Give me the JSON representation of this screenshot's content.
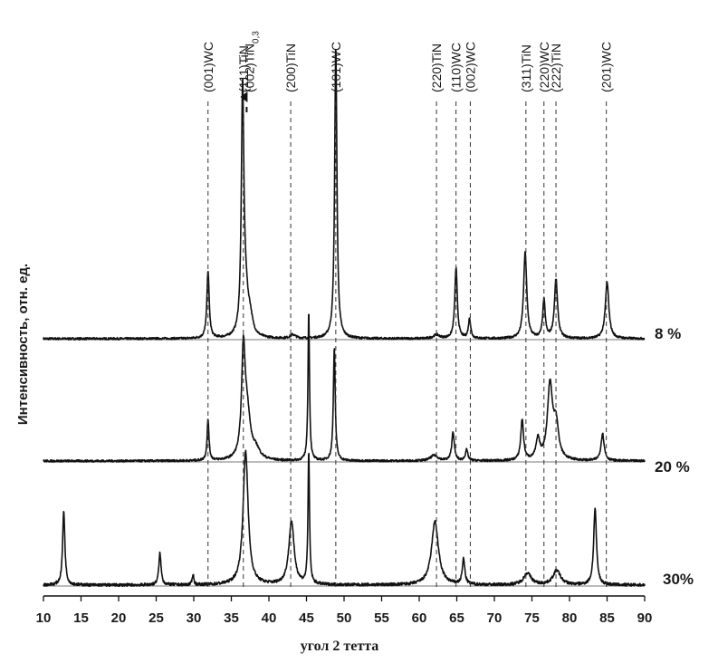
{
  "chart_data": {
    "type": "line",
    "xlabel": "угол 2 тетта",
    "ylabel": "Интенсивность, отн. ед.",
    "xlim": [
      10,
      90
    ],
    "x_ticks": [
      10,
      15,
      20,
      25,
      30,
      35,
      40,
      45,
      50,
      55,
      60,
      65,
      70,
      75,
      80,
      85,
      90
    ],
    "grid": false,
    "y_ticks": false,
    "peak_labels": [
      {
        "label": "(001)WC",
        "x": 31.9
      },
      {
        "label": "(111)TiN",
        "x": 36.6
      },
      {
        "label": "(002)TiN0,3",
        "x": 37.4,
        "arrow": true
      },
      {
        "label": "(200)TiN",
        "x": 42.9
      },
      {
        "label": "(101)WC",
        "x": 48.9
      },
      {
        "label": "(220)TiN",
        "x": 62.3
      },
      {
        "label": "(110)WC",
        "x": 64.9
      },
      {
        "label": "(002)WC",
        "x": 66.8
      },
      {
        "label": "(311)TiN",
        "x": 74.2
      },
      {
        "label": "(220)WC",
        "x": 76.6
      },
      {
        "label": "(222)TiN",
        "x": 78.2
      },
      {
        "label": "(201)WC",
        "x": 84.9
      }
    ],
    "series": [
      {
        "name": "8 %",
        "baseline": 0,
        "noise": 1.2,
        "peaks": [
          {
            "x": 31.9,
            "h": 75,
            "w": 0.18
          },
          {
            "x": 36.5,
            "h": 265,
            "w": 0.2
          },
          {
            "x": 36.9,
            "h": 40,
            "w": 0.4
          },
          {
            "x": 37.5,
            "h": 18,
            "w": 0.4
          },
          {
            "x": 43.2,
            "h": 4,
            "w": 0.4
          },
          {
            "x": 48.9,
            "h": 322,
            "w": 0.18
          },
          {
            "x": 62.3,
            "h": 4,
            "w": 0.5
          },
          {
            "x": 64.9,
            "h": 78,
            "w": 0.2
          },
          {
            "x": 66.7,
            "h": 22,
            "w": 0.18
          },
          {
            "x": 74.1,
            "h": 95,
            "w": 0.25
          },
          {
            "x": 76.6,
            "h": 42,
            "w": 0.2
          },
          {
            "x": 78.2,
            "h": 65,
            "w": 0.25
          },
          {
            "x": 85.0,
            "h": 62,
            "w": 0.28
          }
        ]
      },
      {
        "name": "20 %",
        "baseline": 0,
        "noise": 1.2,
        "peaks": [
          {
            "x": 31.9,
            "h": 45,
            "w": 0.15
          },
          {
            "x": 36.6,
            "h": 112,
            "w": 0.28
          },
          {
            "x": 37.1,
            "h": 50,
            "w": 0.5
          },
          {
            "x": 38.3,
            "h": 10,
            "w": 0.6
          },
          {
            "x": 45.3,
            "h": 165,
            "w": 0.12
          },
          {
            "x": 48.7,
            "h": 125,
            "w": 0.15
          },
          {
            "x": 62.0,
            "h": 6,
            "w": 0.6
          },
          {
            "x": 64.5,
            "h": 32,
            "w": 0.2
          },
          {
            "x": 66.3,
            "h": 12,
            "w": 0.2
          },
          {
            "x": 73.7,
            "h": 45,
            "w": 0.22
          },
          {
            "x": 75.8,
            "h": 22,
            "w": 0.3
          },
          {
            "x": 77.4,
            "h": 82,
            "w": 0.4
          },
          {
            "x": 78.2,
            "h": 38,
            "w": 0.4
          },
          {
            "x": 84.4,
            "h": 30,
            "w": 0.25
          }
        ]
      },
      {
        "name": "30%",
        "baseline": 0,
        "noise": 1.6,
        "peaks": [
          {
            "x": 12.7,
            "h": 82,
            "w": 0.18
          },
          {
            "x": 25.5,
            "h": 35,
            "w": 0.18
          },
          {
            "x": 29.9,
            "h": 12,
            "w": 0.12
          },
          {
            "x": 36.9,
            "h": 148,
            "w": 0.4
          },
          {
            "x": 43.0,
            "h": 70,
            "w": 0.42
          },
          {
            "x": 45.3,
            "h": 145,
            "w": 0.12
          },
          {
            "x": 62.1,
            "h": 70,
            "w": 0.55
          },
          {
            "x": 65.9,
            "h": 28,
            "w": 0.2
          },
          {
            "x": 74.4,
            "h": 13,
            "w": 0.6
          },
          {
            "x": 78.3,
            "h": 16,
            "w": 0.6
          },
          {
            "x": 83.4,
            "h": 85,
            "w": 0.22
          }
        ]
      }
    ]
  }
}
